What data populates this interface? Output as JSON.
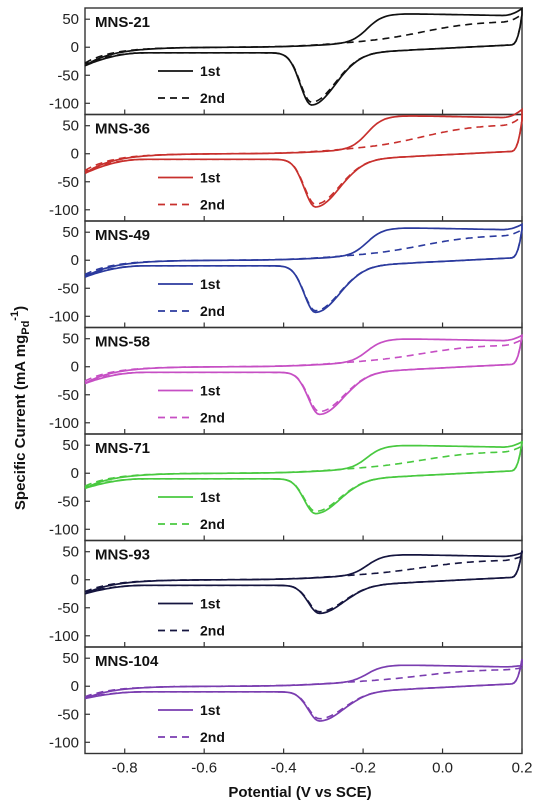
{
  "chart_data": {
    "type": "line",
    "xlabel": "Potential (V vs SCE)",
    "ylabel_parts": [
      "Specific Current (mA mg",
      "Pd",
      "-1",
      ")"
    ],
    "xlim": [
      -0.9,
      0.2
    ],
    "ylim": [
      -120,
      70
    ],
    "xticks": [
      "-0.8",
      "-0.6",
      "-0.4",
      "-0.2",
      "0.0",
      "0.2"
    ],
    "xtick_values": [
      -0.8,
      -0.6,
      -0.4,
      -0.2,
      0.0,
      0.2
    ],
    "yticks": [
      "50",
      "0",
      "-50",
      "-100"
    ],
    "ytick_values": [
      50,
      0,
      -50,
      -100
    ],
    "legend_labels": [
      "1st",
      "2nd"
    ],
    "panels": [
      {
        "name": "MNS-21",
        "color": "#111111",
        "peak_x": -0.33,
        "peak_1st": -103,
        "peak_2nd": -98,
        "anodic_peak": 60,
        "left_end": -33,
        "right_end": 58
      },
      {
        "name": "MNS-36",
        "color": "#c8302d",
        "peak_x": -0.32,
        "peak_1st": -95,
        "peak_2nd": -90,
        "anodic_peak": 68,
        "left_end": -35,
        "right_end": 60
      },
      {
        "name": "MNS-49",
        "color": "#2b3a9e",
        "peak_x": -0.32,
        "peak_1st": -93,
        "peak_2nd": -90,
        "anodic_peak": 58,
        "left_end": -30,
        "right_end": 55
      },
      {
        "name": "MNS-58",
        "color": "#c64fc4",
        "peak_x": -0.31,
        "peak_1st": -85,
        "peak_2nd": -80,
        "anodic_peak": 50,
        "left_end": -30,
        "right_end": 55
      },
      {
        "name": "MNS-71",
        "color": "#49c940",
        "peak_x": -0.32,
        "peak_1st": -72,
        "peak_2nd": -68,
        "anodic_peak": 50,
        "left_end": -27,
        "right_end": 55
      },
      {
        "name": "MNS-93",
        "color": "#15153f",
        "peak_x": -0.31,
        "peak_1st": -60,
        "peak_2nd": -57,
        "anodic_peak": 45,
        "left_end": -25,
        "right_end": 52
      },
      {
        "name": "MNS-104",
        "color": "#7a3db0",
        "peak_x": -0.31,
        "peak_1st": -62,
        "peak_2nd": -58,
        "anodic_peak": 38,
        "left_end": -22,
        "right_end": 48
      }
    ]
  }
}
